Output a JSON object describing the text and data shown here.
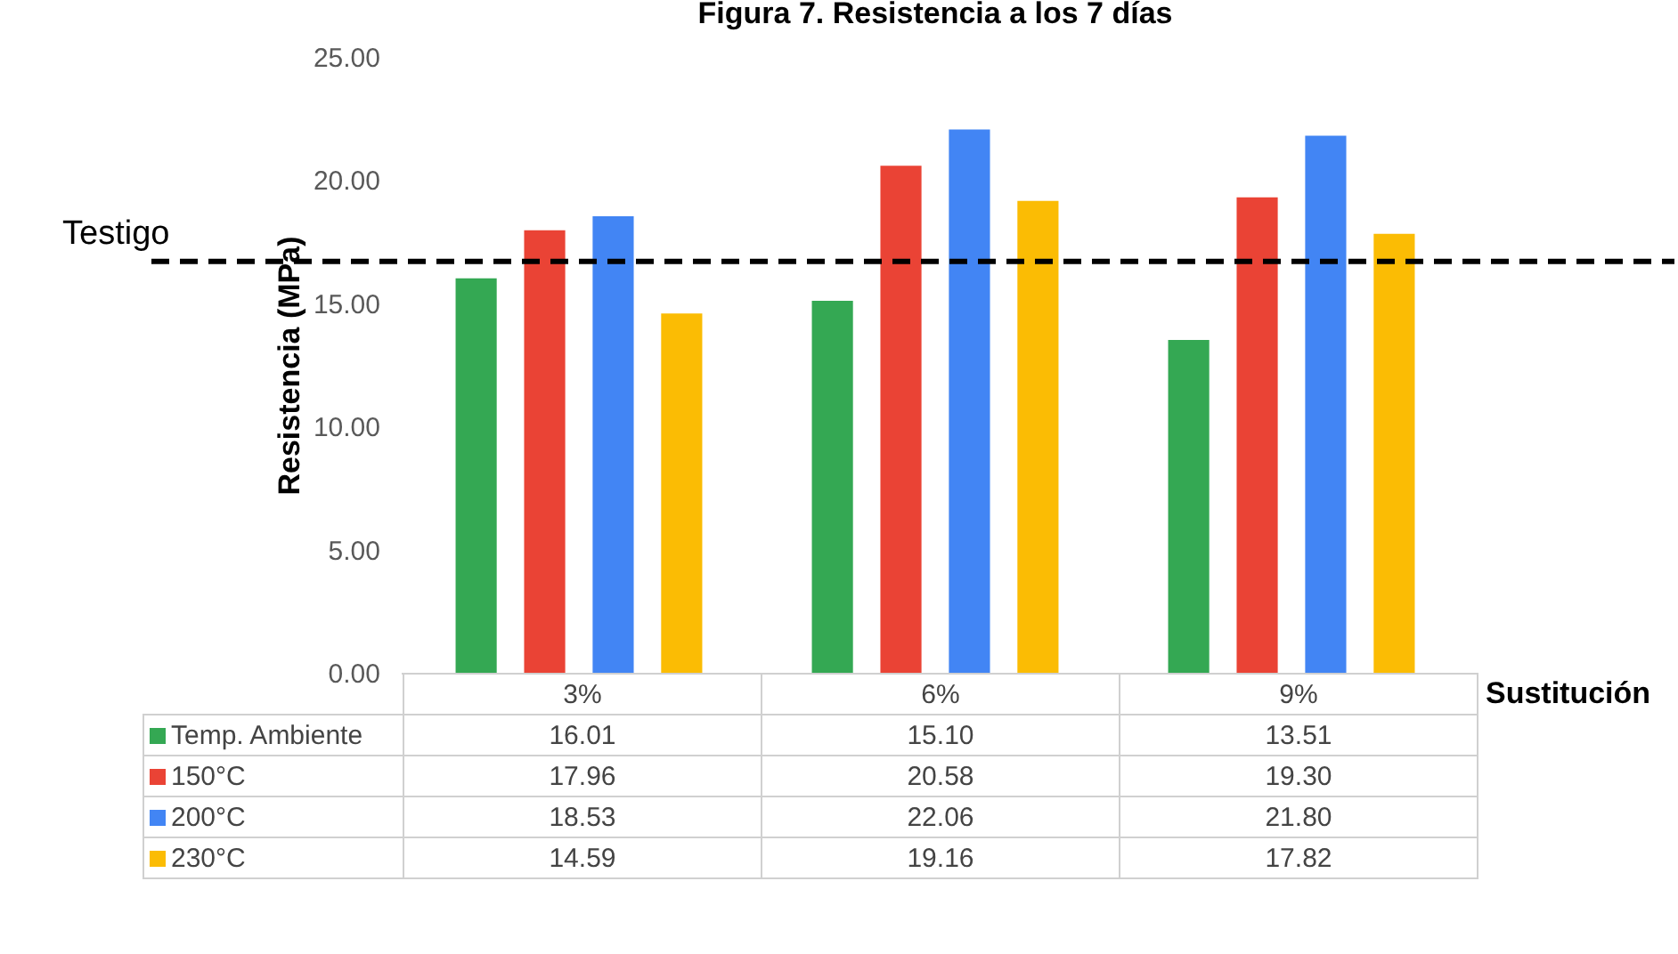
{
  "chart_data": {
    "type": "bar",
    "title": "Figura 7. Resistencia a los 7 días",
    "ylabel": "Resistencia (MPa)",
    "xlabel": "Sustitución",
    "categories": [
      "3%",
      "6%",
      "9%"
    ],
    "series": [
      {
        "name": "Temp. Ambiente",
        "color": "#34a853",
        "values": [
          16.01,
          15.1,
          13.51
        ],
        "value_labels": [
          "16.01",
          "15.10",
          "13.51"
        ]
      },
      {
        "name": "150°C",
        "color": "#ea4335",
        "values": [
          17.96,
          20.58,
          19.3
        ],
        "value_labels": [
          "17.96",
          "20.58",
          "19.30"
        ]
      },
      {
        "name": "200°C",
        "color": "#4285f4",
        "values": [
          18.53,
          22.06,
          21.8
        ],
        "value_labels": [
          "18.53",
          "22.06",
          "21.80"
        ]
      },
      {
        "name": "230°C",
        "color": "#fbbc04",
        "values": [
          14.59,
          19.16,
          17.82
        ],
        "value_labels": [
          "14.59",
          "19.16",
          "17.82"
        ]
      }
    ],
    "ylim": [
      0,
      25
    ],
    "yticks": [
      {
        "value": 0,
        "label": "0.00"
      },
      {
        "value": 5,
        "label": "5.00"
      },
      {
        "value": 10,
        "label": "10.00"
      },
      {
        "value": 15,
        "label": "15.00"
      },
      {
        "value": 20,
        "label": "20.00"
      },
      {
        "value": 25,
        "label": "25.00"
      }
    ],
    "ref_lines": [
      {
        "axis": "y",
        "value": 16.7,
        "label": "Testigo",
        "color": "#000000",
        "line_style": "dashed"
      }
    ],
    "legend": "bottom",
    "grid": false
  }
}
